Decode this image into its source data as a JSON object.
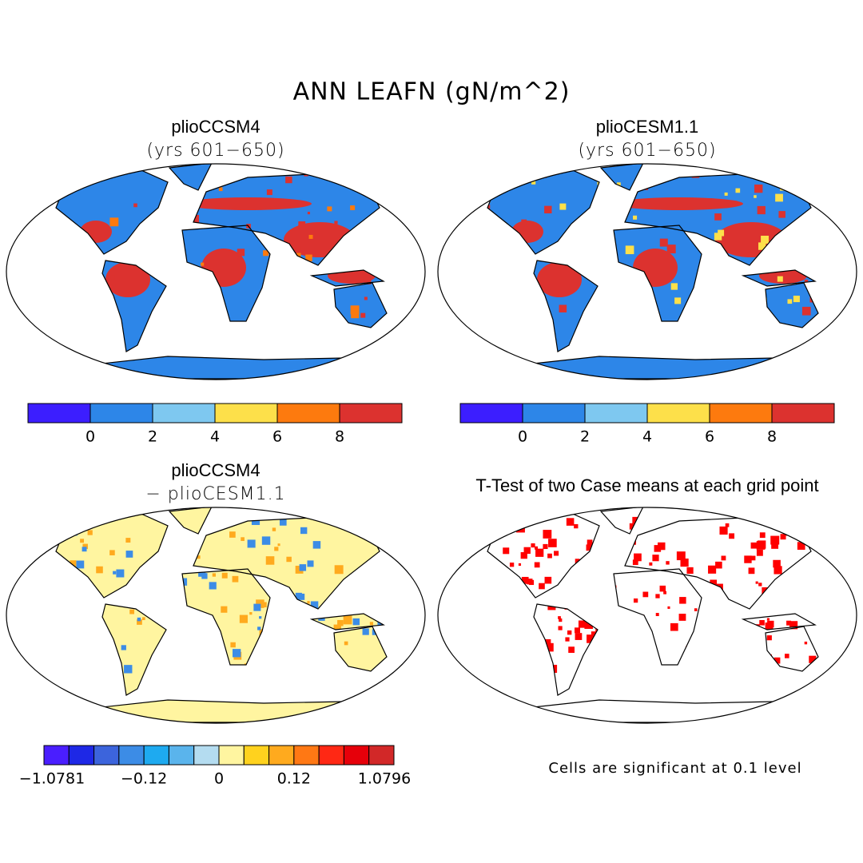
{
  "title": "ANN LEAFN (gN/m^2)",
  "panels": [
    {
      "title": "plioCCSM4",
      "subtitle": "(yrs 601−650)"
    },
    {
      "title": "plioCESM1.1",
      "subtitle": "(yrs 601−650)"
    },
    {
      "title": "plioCCSM4",
      "subtitle": "− plioCESM1.1"
    },
    {
      "title": "T-Test of two Case means at each grid point",
      "note": "Cells are significant at 0.1 level"
    }
  ],
  "colorbars": [
    {
      "colors": [
        "#3c1eff",
        "#2d7de6",
        "#2d86e8",
        "#7ec8f0",
        "#fde04a",
        "#fd7a0e",
        "#dc322f"
      ],
      "labels": [
        "0",
        "2",
        "4",
        "6",
        "8"
      ]
    },
    {
      "colors": [
        "#3c1eff",
        "#2d7de6",
        "#2d86e8",
        "#7ec8f0",
        "#fde04a",
        "#fd7a0e",
        "#dc322f"
      ],
      "labels": [
        "0",
        "2",
        "4",
        "6",
        "8"
      ]
    },
    {
      "colors": [
        "#4a1eff",
        "#1e28e6",
        "#3c64dc",
        "#3c8ce6",
        "#1eaaf0",
        "#5ab4ec",
        "#b4dcf0",
        "#fff5a0",
        "#ffd21e",
        "#ffaa1e",
        "#ff7814",
        "#ff2814",
        "#e6000a",
        "#d22828"
      ],
      "labels": [
        "−1.0781",
        "−0.12",
        "0",
        "0.12",
        "1.0796"
      ]
    }
  ]
}
